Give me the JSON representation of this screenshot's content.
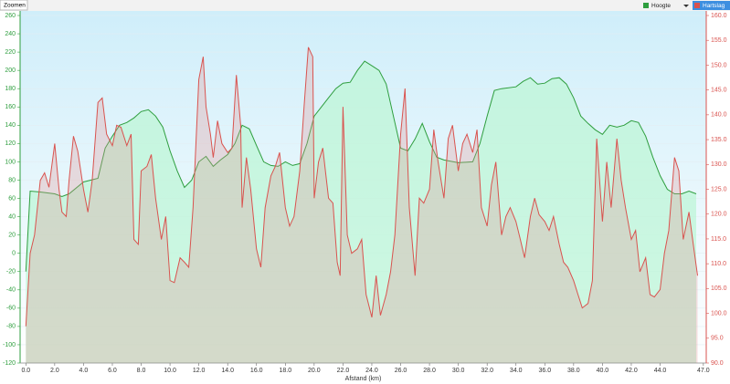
{
  "toolbar": {
    "zoom": "Zoomen"
  },
  "chart_data": {
    "type": "area",
    "x_label": "Afstand   (km)",
    "xlim": [
      -0.4,
      47.2
    ],
    "ylim": [
      -120,
      260
    ],
    "y2lim": [
      90,
      160
    ],
    "grid": true,
    "xticks": [
      {
        "value": 0,
        "label": "0.0"
      },
      {
        "value": 2,
        "label": "2.0"
      },
      {
        "value": 4,
        "label": "4.0"
      },
      {
        "value": 6,
        "label": "6.0"
      },
      {
        "value": 8,
        "label": "8.0"
      },
      {
        "value": 10,
        "label": "10.0"
      },
      {
        "value": 12,
        "label": "12.0"
      },
      {
        "value": 14,
        "label": "14.0"
      },
      {
        "value": 16,
        "label": "16.0"
      },
      {
        "value": 18,
        "label": "18.0"
      },
      {
        "value": 20,
        "label": "20.0"
      },
      {
        "value": 22,
        "label": "22.0"
      },
      {
        "value": 24,
        "label": "24.0"
      },
      {
        "value": 26,
        "label": "26.0"
      },
      {
        "value": 28,
        "label": "28.0"
      },
      {
        "value": 30,
        "label": "30.0"
      },
      {
        "value": 32,
        "label": "32.0"
      },
      {
        "value": 34,
        "label": "34.0"
      },
      {
        "value": 36,
        "label": "36.0"
      },
      {
        "value": 38,
        "label": "38.0"
      },
      {
        "value": 40,
        "label": "40.0"
      },
      {
        "value": 42,
        "label": "42.0"
      },
      {
        "value": 44,
        "label": "44.0"
      },
      {
        "value": 47,
        "label": "47.0"
      }
    ],
    "yticks": [
      -120,
      -100,
      -80,
      -60,
      -40,
      -20,
      0,
      20,
      40,
      60,
      80,
      100,
      120,
      140,
      160,
      180,
      200,
      220,
      240,
      260
    ],
    "y2ticks": [
      {
        "value": 90,
        "label": "90.0"
      },
      {
        "value": 95,
        "label": "95.0"
      },
      {
        "value": 100,
        "label": "100.0"
      },
      {
        "value": 105,
        "label": "105.0"
      },
      {
        "value": 110,
        "label": "110.0"
      },
      {
        "value": 115,
        "label": "115.0"
      },
      {
        "value": 120,
        "label": "120.0"
      },
      {
        "value": 125,
        "label": "125.0"
      },
      {
        "value": 130,
        "label": "130.0"
      },
      {
        "value": 135,
        "label": "135.0"
      },
      {
        "value": 140,
        "label": "140.0"
      },
      {
        "value": 145,
        "label": "145.0"
      },
      {
        "value": 150,
        "label": "150.0"
      },
      {
        "value": 155,
        "label": "155.0"
      },
      {
        "value": 160,
        "label": "160.0"
      }
    ],
    "series": [
      {
        "name": "Hoogte",
        "color": "#2e9e3e",
        "axis": "y",
        "x": [
          0,
          0.3,
          1,
          2,
          2.5,
          3,
          4,
          4.5,
          5,
          5.5,
          6,
          6.5,
          7,
          7.5,
          8,
          8.5,
          9,
          9.5,
          10,
          10.5,
          11,
          11.5,
          12,
          12.5,
          13,
          13.5,
          14,
          14.5,
          15,
          15.5,
          16,
          16.5,
          17,
          17.5,
          18,
          18.5,
          19,
          19.5,
          20,
          20.5,
          21,
          21.5,
          22,
          22.5,
          23,
          23.5,
          24,
          24.5,
          25,
          25.5,
          26,
          26.5,
          27,
          27.5,
          28,
          28.5,
          29,
          30,
          31,
          31.5,
          32,
          32.5,
          33,
          34,
          34.5,
          35,
          35.5,
          36,
          36.5,
          37,
          37.5,
          38,
          38.5,
          39,
          39.5,
          40,
          40.5,
          41,
          41.5,
          42,
          42.5,
          43,
          43.5,
          44,
          44.5,
          45,
          45.5,
          46,
          46.5
        ],
        "values": [
          -20,
          68,
          67,
          65,
          62,
          65,
          78,
          80,
          82,
          115,
          128,
          140,
          143,
          148,
          155,
          157,
          150,
          138,
          112,
          90,
          72,
          80,
          100,
          106,
          95,
          102,
          108,
          120,
          140,
          136,
          118,
          100,
          96,
          95,
          100,
          96,
          98,
          120,
          150,
          160,
          170,
          180,
          186,
          187,
          200,
          210,
          205,
          200,
          185,
          150,
          115,
          112,
          125,
          142,
          122,
          105,
          102,
          99,
          100,
          120,
          150,
          178,
          180,
          182,
          188,
          192,
          185,
          186,
          191,
          192,
          185,
          170,
          150,
          142,
          135,
          130,
          140,
          138,
          140,
          145,
          143,
          128,
          105,
          85,
          70,
          65,
          65,
          68,
          65
        ]
      },
      {
        "name": "Hartslag",
        "color": "#d9534f",
        "axis": "y2",
        "x": [
          0,
          0.3,
          0.6,
          1,
          1.3,
          1.6,
          2,
          2.3,
          2.5,
          2.8,
          3,
          3.3,
          3.6,
          4,
          4.3,
          4.6,
          5,
          5.3,
          5.6,
          6,
          6.3,
          6.6,
          7,
          7.3,
          7.5,
          7.8,
          8,
          8.4,
          8.7,
          9,
          9.4,
          9.7,
          10,
          10.3,
          10.7,
          11,
          11.3,
          11.6,
          12,
          12.3,
          12.5,
          12.8,
          13,
          13.3,
          13.6,
          14,
          14.3,
          14.6,
          14.9,
          15,
          15.3,
          15.6,
          16,
          16.3,
          16.6,
          17,
          17.3,
          17.6,
          18,
          18.3,
          18.6,
          19,
          19.3,
          19.6,
          19.9,
          20,
          20.3,
          20.6,
          21,
          21.3,
          21.6,
          21.8,
          22,
          22.3,
          22.6,
          23,
          23.3,
          23.6,
          24,
          24.3,
          24.6,
          25,
          25.3,
          25.6,
          26,
          26.3,
          26.6,
          27,
          27.3,
          27.6,
          28,
          28.3,
          28.6,
          29,
          29.3,
          29.6,
          30,
          30.3,
          30.6,
          31,
          31.3,
          31.6,
          32,
          32.3,
          32.6,
          33,
          33.3,
          33.6,
          34,
          34.3,
          34.6,
          35,
          35.3,
          35.6,
          36,
          36.3,
          36.6,
          37,
          37.3,
          37.6,
          38,
          38.3,
          38.6,
          39,
          39.3,
          39.6,
          40,
          40.3,
          40.6,
          41,
          41.3,
          41.6,
          42,
          42.3,
          42.6,
          43,
          43.3,
          43.6,
          44,
          44.3,
          44.6,
          45,
          45.3,
          45.6,
          46,
          46.3,
          46.6
        ],
        "values": [
          97.4,
          112.1,
          115.8,
          126.8,
          128.3,
          125.4,
          134.2,
          125.0,
          120.4,
          119.5,
          126.8,
          135.7,
          132.7,
          125.0,
          120.4,
          126.8,
          142.5,
          143.4,
          136.1,
          133.8,
          137.9,
          137.5,
          133.8,
          136.1,
          114.9,
          113.9,
          128.7,
          129.6,
          132.0,
          123.2,
          114.9,
          119.5,
          106.6,
          106.2,
          111.2,
          110.3,
          109.3,
          121.3,
          147.1,
          151.7,
          141.6,
          136.1,
          131.4,
          138.8,
          134.2,
          132.4,
          133.3,
          148.0,
          137.9,
          121.3,
          131.4,
          125.0,
          113.0,
          109.3,
          121.3,
          127.7,
          129.6,
          132.4,
          121.3,
          117.6,
          119.5,
          128.7,
          141.6,
          153.6,
          151.7,
          123.2,
          130.5,
          133.3,
          123.2,
          122.2,
          110.3,
          107.6,
          141.6,
          115.8,
          112.1,
          113.0,
          114.9,
          103.8,
          99.2,
          107.6,
          99.6,
          103.8,
          108.4,
          115.8,
          136.1,
          145.3,
          121.3,
          107.6,
          123.2,
          122.2,
          125.0,
          137.0,
          130.5,
          123.2,
          135.2,
          137.9,
          128.7,
          134.2,
          136.1,
          132.4,
          137.0,
          121.3,
          117.6,
          125.9,
          130.5,
          115.8,
          119.5,
          121.3,
          118.5,
          114.9,
          111.2,
          119.5,
          123.2,
          119.9,
          118.5,
          116.7,
          119.5,
          113.9,
          110.3,
          109.3,
          106.6,
          103.8,
          101.1,
          102.0,
          106.6,
          135.2,
          118.5,
          130.5,
          121.3,
          135.2,
          126.8,
          121.3,
          114.9,
          116.7,
          108.4,
          111.2,
          103.8,
          103.3,
          104.8,
          112.1,
          116.7,
          131.4,
          128.7,
          114.9,
          120.4,
          113.9,
          107.6
        ]
      }
    ]
  }
}
